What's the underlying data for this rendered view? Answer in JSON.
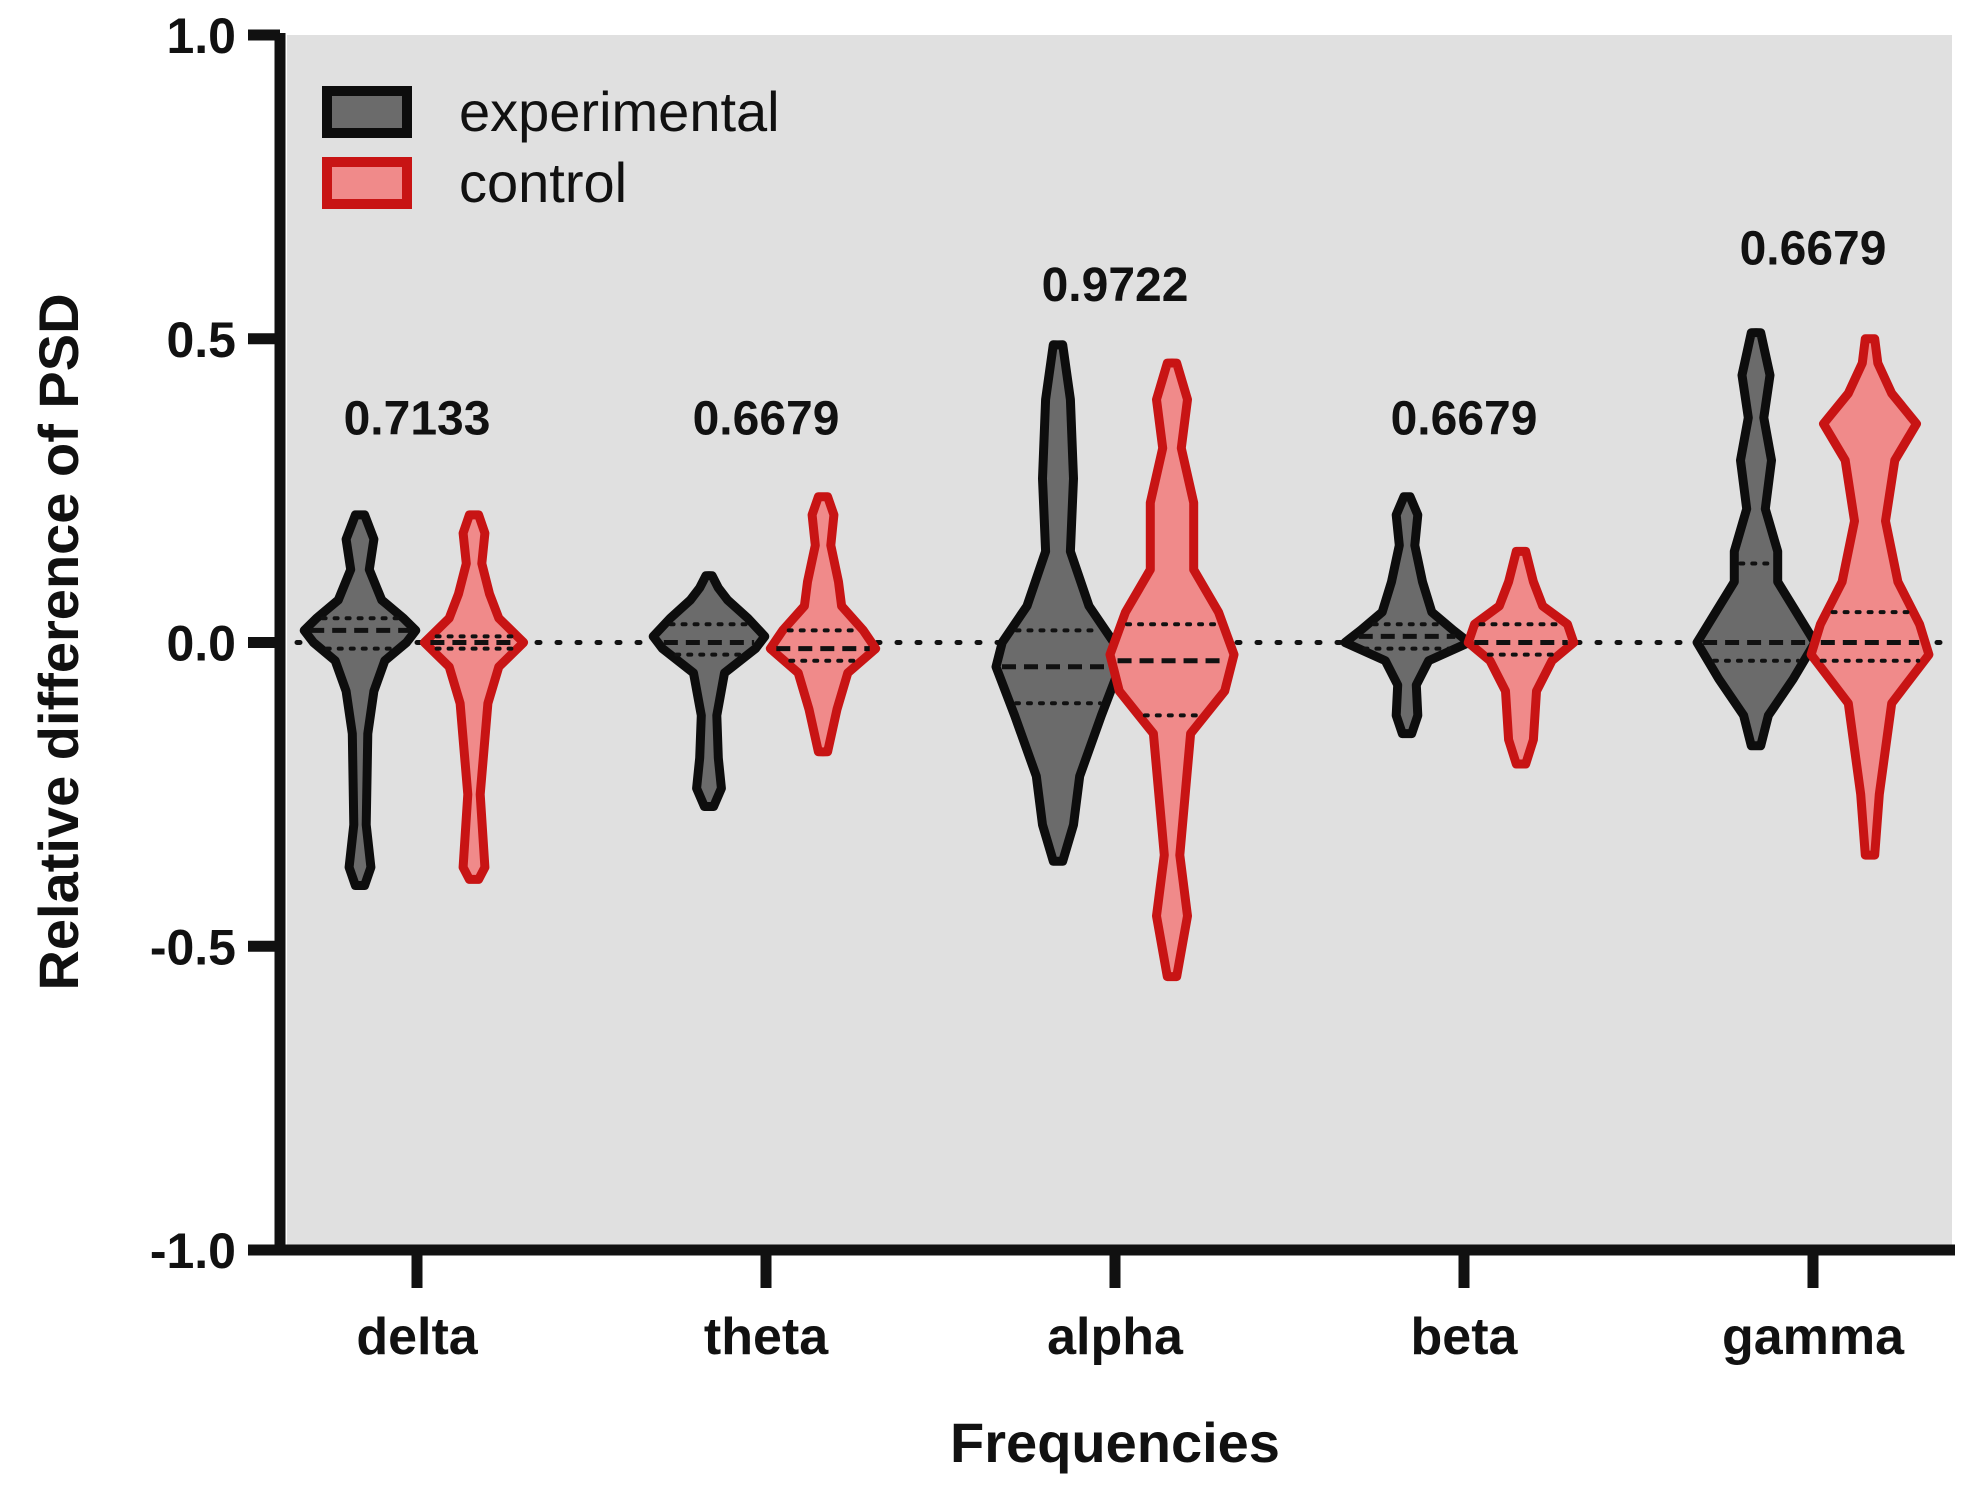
{
  "chart_data": {
    "type": "violin",
    "title": "",
    "xlabel": "Frequencies",
    "ylabel": "Relative difference of PSD",
    "ylim": [
      -1.0,
      1.0
    ],
    "yticks": [
      "1.0",
      "0.5",
      "0.0",
      "-0.5",
      "-1.0"
    ],
    "ytick_values": [
      1.0,
      0.5,
      0.0,
      -0.5,
      -1.0
    ],
    "categories": [
      "delta",
      "theta",
      "alpha",
      "beta",
      "gamma"
    ],
    "reference_line": 0.0,
    "legend": {
      "position": "top-left",
      "entries": [
        {
          "name": "experimental",
          "fill": "#6b6b6b",
          "stroke": "#0d0d0d"
        },
        {
          "name": "control",
          "fill": "#f08a8a",
          "stroke": "#c81414"
        }
      ]
    },
    "p_values": [
      "0.7133",
      "0.6679",
      "0.9722",
      "0.6679",
      "0.6679"
    ],
    "p_value_y": [
      0.37,
      0.37,
      0.59,
      0.37,
      0.65
    ],
    "series": [
      {
        "name": "experimental",
        "fill": "#6b6b6b",
        "stroke": "#0d0d0d",
        "violins": [
          {
            "category": "delta",
            "min": -0.4,
            "max": 0.21,
            "median": 0.02,
            "q1": -0.01,
            "q3": 0.04,
            "profile": [
              [
                -0.4,
                0.03
              ],
              [
                -0.37,
                0.07
              ],
              [
                -0.3,
                0.04
              ],
              [
                -0.15,
                0.05
              ],
              [
                -0.08,
                0.09
              ],
              [
                -0.03,
                0.16
              ],
              [
                0.0,
                0.3
              ],
              [
                0.02,
                0.36
              ],
              [
                0.04,
                0.28
              ],
              [
                0.07,
                0.14
              ],
              [
                0.12,
                0.06
              ],
              [
                0.17,
                0.09
              ],
              [
                0.21,
                0.03
              ]
            ]
          },
          {
            "category": "theta",
            "min": -0.27,
            "max": 0.11,
            "median": 0.0,
            "q1": -0.02,
            "q3": 0.03,
            "profile": [
              [
                -0.27,
                0.03
              ],
              [
                -0.24,
                0.08
              ],
              [
                -0.19,
                0.06
              ],
              [
                -0.12,
                0.05
              ],
              [
                -0.05,
                0.1
              ],
              [
                -0.01,
                0.3
              ],
              [
                0.01,
                0.36
              ],
              [
                0.04,
                0.25
              ],
              [
                0.07,
                0.12
              ],
              [
                0.09,
                0.06
              ],
              [
                0.11,
                0.02
              ]
            ]
          },
          {
            "category": "alpha",
            "min": -0.36,
            "max": 0.49,
            "median": -0.04,
            "q1": -0.1,
            "q3": 0.02,
            "profile": [
              [
                -0.36,
                0.03
              ],
              [
                -0.3,
                0.1
              ],
              [
                -0.22,
                0.14
              ],
              [
                -0.12,
                0.28
              ],
              [
                -0.04,
                0.4
              ],
              [
                0.0,
                0.36
              ],
              [
                0.06,
                0.2
              ],
              [
                0.15,
                0.08
              ],
              [
                0.27,
                0.1
              ],
              [
                0.4,
                0.08
              ],
              [
                0.49,
                0.03
              ]
            ]
          },
          {
            "category": "beta",
            "min": -0.15,
            "max": 0.24,
            "median": 0.01,
            "q1": -0.01,
            "q3": 0.03,
            "profile": [
              [
                -0.15,
                0.03
              ],
              [
                -0.12,
                0.07
              ],
              [
                -0.07,
                0.06
              ],
              [
                -0.03,
                0.14
              ],
              [
                0.0,
                0.4
              ],
              [
                0.02,
                0.3
              ],
              [
                0.05,
                0.16
              ],
              [
                0.1,
                0.1
              ],
              [
                0.16,
                0.05
              ],
              [
                0.21,
                0.07
              ],
              [
                0.24,
                0.02
              ]
            ]
          },
          {
            "category": "gamma",
            "min": -0.17,
            "max": 0.51,
            "median": 0.0,
            "q1": -0.03,
            "q3": 0.13,
            "profile": [
              [
                -0.17,
                0.03
              ],
              [
                -0.12,
                0.08
              ],
              [
                -0.06,
                0.24
              ],
              [
                0.0,
                0.38
              ],
              [
                0.05,
                0.26
              ],
              [
                0.1,
                0.14
              ],
              [
                0.15,
                0.14
              ],
              [
                0.22,
                0.06
              ],
              [
                0.3,
                0.1
              ],
              [
                0.37,
                0.05
              ],
              [
                0.44,
                0.09
              ],
              [
                0.51,
                0.03
              ]
            ]
          }
        ]
      },
      {
        "name": "control",
        "fill": "#f08a8a",
        "stroke": "#c81414",
        "violins": [
          {
            "category": "delta",
            "min": -0.39,
            "max": 0.21,
            "median": 0.0,
            "q1": -0.01,
            "q3": 0.01,
            "profile": [
              [
                -0.39,
                0.03
              ],
              [
                -0.37,
                0.07
              ],
              [
                -0.25,
                0.04
              ],
              [
                -0.1,
                0.09
              ],
              [
                -0.04,
                0.16
              ],
              [
                0.0,
                0.32
              ],
              [
                0.04,
                0.16
              ],
              [
                0.08,
                0.1
              ],
              [
                0.13,
                0.05
              ],
              [
                0.18,
                0.07
              ],
              [
                0.21,
                0.03
              ]
            ]
          },
          {
            "category": "theta",
            "min": -0.18,
            "max": 0.24,
            "median": -0.01,
            "q1": -0.03,
            "q3": 0.02,
            "profile": [
              [
                -0.18,
                0.03
              ],
              [
                -0.11,
                0.09
              ],
              [
                -0.05,
                0.16
              ],
              [
                -0.01,
                0.34
              ],
              [
                0.02,
                0.26
              ],
              [
                0.06,
                0.12
              ],
              [
                0.1,
                0.1
              ],
              [
                0.16,
                0.05
              ],
              [
                0.21,
                0.07
              ],
              [
                0.24,
                0.03
              ]
            ]
          },
          {
            "category": "alpha",
            "min": -0.55,
            "max": 0.46,
            "median": -0.03,
            "q1": -0.12,
            "q3": 0.03,
            "profile": [
              [
                -0.55,
                0.03
              ],
              [
                -0.45,
                0.1
              ],
              [
                -0.35,
                0.05
              ],
              [
                -0.15,
                0.12
              ],
              [
                -0.08,
                0.34
              ],
              [
                -0.02,
                0.4
              ],
              [
                0.05,
                0.3
              ],
              [
                0.12,
                0.14
              ],
              [
                0.23,
                0.14
              ],
              [
                0.32,
                0.06
              ],
              [
                0.4,
                0.1
              ],
              [
                0.46,
                0.03
              ]
            ]
          },
          {
            "category": "beta",
            "min": -0.2,
            "max": 0.15,
            "median": 0.0,
            "q1": -0.02,
            "q3": 0.03,
            "profile": [
              [
                -0.2,
                0.03
              ],
              [
                -0.16,
                0.08
              ],
              [
                -0.08,
                0.1
              ],
              [
                -0.03,
                0.2
              ],
              [
                0.0,
                0.34
              ],
              [
                0.03,
                0.3
              ],
              [
                0.06,
                0.14
              ],
              [
                0.1,
                0.08
              ],
              [
                0.15,
                0.03
              ]
            ]
          },
          {
            "category": "gamma",
            "min": -0.35,
            "max": 0.5,
            "median": 0.0,
            "q1": -0.03,
            "q3": 0.05,
            "profile": [
              [
                -0.35,
                0.03
              ],
              [
                -0.25,
                0.06
              ],
              [
                -0.1,
                0.14
              ],
              [
                -0.02,
                0.38
              ],
              [
                0.03,
                0.32
              ],
              [
                0.1,
                0.18
              ],
              [
                0.2,
                0.1
              ],
              [
                0.3,
                0.16
              ],
              [
                0.36,
                0.3
              ],
              [
                0.41,
                0.14
              ],
              [
                0.46,
                0.05
              ],
              [
                0.5,
                0.03
              ]
            ]
          }
        ]
      }
    ]
  }
}
